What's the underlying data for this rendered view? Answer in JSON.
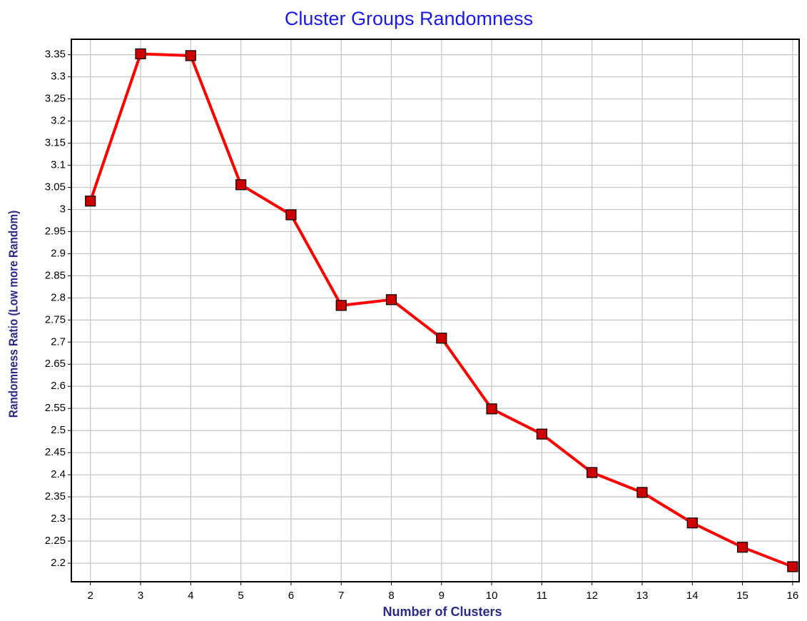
{
  "chart_data": {
    "type": "line",
    "title": "Cluster Groups Randomness",
    "x_label": "Number of Clusters",
    "y_label": "Randomness Ratio  (Low more Random)",
    "x": [
      2,
      3,
      4,
      5,
      6,
      7,
      8,
      9,
      10,
      11,
      12,
      13,
      14,
      15,
      16
    ],
    "series": [
      {
        "name": "Randomness Ratio",
        "color": "#ff0000",
        "marker_color": "#cc0000",
        "values": [
          3.019,
          3.352,
          3.348,
          3.056,
          2.988,
          2.783,
          2.796,
          2.709,
          2.549,
          2.492,
          2.405,
          2.36,
          2.291,
          2.236,
          2.192
        ]
      }
    ],
    "xlim": [
      1.62,
      16.13
    ],
    "ylim": [
      2.158,
      3.385
    ],
    "xticks": [
      2,
      3,
      4,
      5,
      6,
      7,
      8,
      9,
      10,
      11,
      12,
      13,
      14,
      15,
      16
    ],
    "yticks": [
      2.2,
      2.25,
      2.3,
      2.35,
      2.4,
      2.45,
      2.5,
      2.55,
      2.6,
      2.65,
      2.7,
      2.75,
      2.8,
      2.85,
      2.9,
      2.95,
      3,
      3.05,
      3.1,
      3.15,
      3.2,
      3.25,
      3.3,
      3.35
    ],
    "grid": true,
    "legend": false
  }
}
